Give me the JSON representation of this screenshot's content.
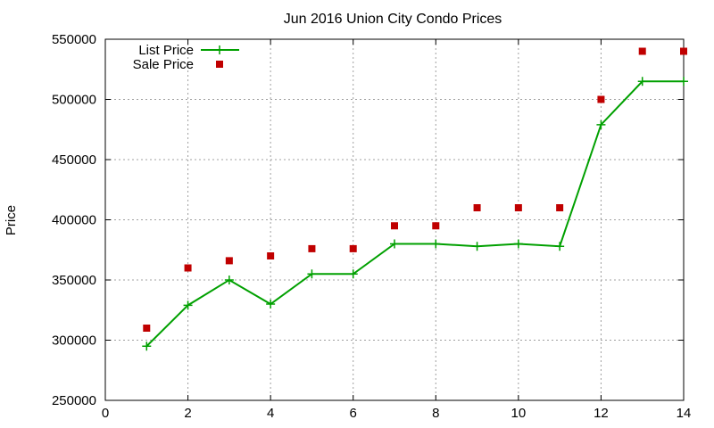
{
  "chart_data": {
    "type": "line",
    "title": "Jun 2016 Union City Condo Prices",
    "xlabel": "",
    "ylabel": "Price",
    "xlim": [
      0,
      14
    ],
    "ylim": [
      250000,
      550000
    ],
    "xticks": [
      0,
      2,
      4,
      6,
      8,
      10,
      12,
      14
    ],
    "yticks": [
      250000,
      300000,
      350000,
      400000,
      450000,
      500000,
      550000
    ],
    "grid": true,
    "legend_position": "top-left",
    "series": [
      {
        "name": "List Price",
        "style": "line+points",
        "color": "#00a000",
        "x": [
          1,
          2,
          3,
          4,
          5,
          6,
          7,
          8,
          9,
          10,
          11,
          12,
          13,
          14
        ],
        "y": [
          295000,
          329000,
          350000,
          330000,
          355000,
          355000,
          380000,
          380000,
          378000,
          380000,
          378000,
          479000,
          515000,
          515000
        ]
      },
      {
        "name": "Sale Price",
        "style": "points",
        "color": "#c00000",
        "x": [
          1,
          2,
          3,
          4,
          5,
          6,
          7,
          8,
          9,
          10,
          11,
          12,
          13,
          14
        ],
        "y": [
          310000,
          360000,
          366000,
          370000,
          376000,
          376000,
          395000,
          395000,
          410000,
          410000,
          410000,
          500000,
          540000,
          540000
        ]
      }
    ]
  }
}
